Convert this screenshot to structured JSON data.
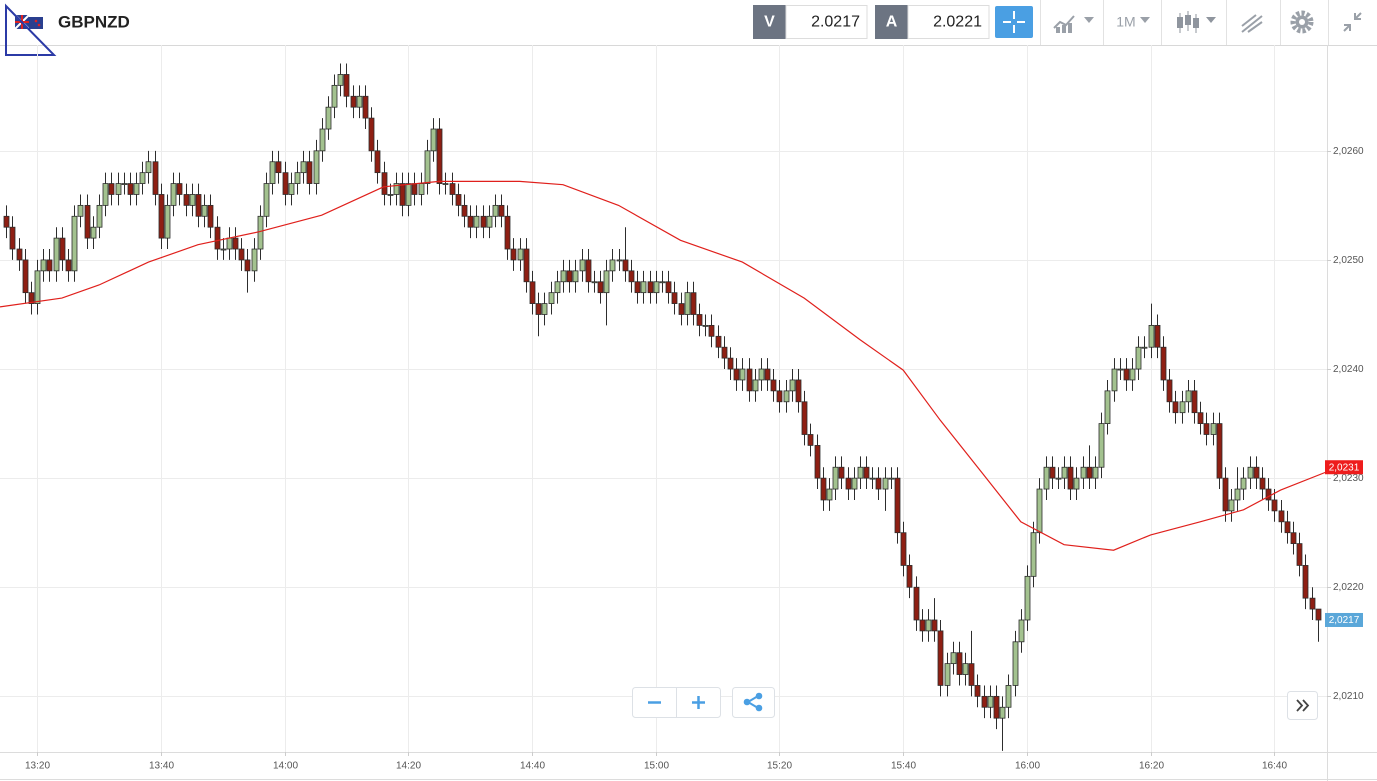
{
  "header": {
    "symbol": "GBPNZD",
    "sell_label": "V",
    "sell_price": "2.0217",
    "buy_label": "A",
    "buy_price": "2.0221",
    "timeframe": "1M"
  },
  "chart_data": {
    "type": "candlestick",
    "x": [
      795,
      796,
      797,
      798,
      799,
      800,
      801,
      802,
      803,
      804,
      805,
      806,
      807,
      808,
      809,
      810,
      811,
      812,
      813,
      814,
      815,
      816,
      817,
      818,
      819,
      820,
      821,
      822,
      823,
      824,
      825,
      826,
      827,
      828,
      829,
      830,
      831,
      832,
      833,
      834,
      835,
      836,
      837,
      838,
      839,
      840,
      841,
      842,
      843,
      844,
      845,
      846,
      847,
      848,
      849,
      850,
      851,
      852,
      853,
      854,
      855,
      856,
      857,
      858,
      859,
      860,
      861,
      862,
      863,
      864,
      865,
      866,
      867,
      868,
      869,
      870,
      871,
      872,
      873,
      874,
      875,
      876,
      877,
      878,
      879,
      880,
      881,
      882,
      883,
      884,
      885,
      886,
      887,
      888,
      889,
      890,
      891,
      892,
      893,
      894,
      895,
      896,
      897,
      898,
      899,
      900,
      901,
      902,
      903,
      904,
      905,
      906,
      907,
      908,
      909,
      910,
      911,
      912,
      913,
      914,
      915,
      916,
      917,
      918,
      919,
      920,
      921,
      922,
      923,
      924,
      925,
      926,
      927,
      928,
      929,
      930,
      931,
      932,
      933,
      934,
      935,
      936,
      937,
      938,
      939,
      940,
      941,
      942,
      943,
      944,
      945,
      946,
      947,
      948,
      949,
      950,
      951,
      952,
      953,
      954,
      955,
      956,
      957,
      958,
      959,
      960,
      961,
      962,
      963,
      964,
      965,
      966,
      967,
      968,
      969,
      970,
      971,
      972,
      973,
      974,
      975,
      976,
      977,
      978,
      979,
      980,
      981,
      982,
      983,
      984,
      985,
      986,
      987,
      988,
      989,
      990,
      991,
      992,
      993,
      994,
      995,
      996,
      997,
      998,
      999,
      1000,
      1001,
      1002,
      1003,
      1004,
      1005,
      1006,
      1007
    ],
    "open": [
      2.0254,
      2.0253,
      2.0251,
      2.025,
      2.0247,
      2.0246,
      2.0249,
      2.025,
      2.0249,
      2.0252,
      2.025,
      2.0249,
      2.0254,
      2.0255,
      2.0252,
      2.0253,
      2.0255,
      2.0257,
      2.0256,
      2.0257,
      2.0257,
      2.0256,
      2.0257,
      2.0258,
      2.0259,
      2.0256,
      2.0252,
      2.0255,
      2.0257,
      2.0256,
      2.0255,
      2.0256,
      2.0254,
      2.0255,
      2.0253,
      2.0251,
      2.0251,
      2.0252,
      2.0251,
      2.025,
      2.0249,
      2.0251,
      2.0254,
      2.0257,
      2.0259,
      2.0258,
      2.0256,
      2.0257,
      2.0258,
      2.0259,
      2.0257,
      2.026,
      2.0262,
      2.0264,
      2.0266,
      2.0267,
      2.0265,
      2.0264,
      2.0265,
      2.0263,
      2.026,
      2.0258,
      2.0256,
      2.0256,
      2.0257,
      2.0255,
      2.0257,
      2.0256,
      2.0257,
      2.026,
      2.0262,
      2.0257,
      2.0257,
      2.0256,
      2.0255,
      2.0254,
      2.0253,
      2.0254,
      2.0253,
      2.0254,
      2.0255,
      2.0254,
      2.0251,
      2.025,
      2.0251,
      2.0248,
      2.0246,
      2.0245,
      2.0246,
      2.0247,
      2.0248,
      2.0249,
      2.0248,
      2.0249,
      2.025,
      2.0248,
      2.0248,
      2.0247,
      2.0249,
      2.025,
      2.025,
      2.0249,
      2.0248,
      2.0247,
      2.0248,
      2.0247,
      2.0248,
      2.0248,
      2.0247,
      2.0246,
      2.0245,
      2.0247,
      2.0245,
      2.0244,
      2.0244,
      2.0243,
      2.0242,
      2.0241,
      2.024,
      2.0239,
      2.024,
      2.0238,
      2.0239,
      2.024,
      2.0239,
      2.0238,
      2.0237,
      2.0238,
      2.0239,
      2.0237,
      2.0234,
      2.0233,
      2.023,
      2.0228,
      2.0229,
      2.0231,
      2.023,
      2.0229,
      2.023,
      2.0231,
      2.023,
      2.023,
      2.0229,
      2.023,
      2.023,
      2.0225,
      2.0222,
      2.022,
      2.0217,
      2.0216,
      2.0217,
      2.0216,
      2.0211,
      2.0213,
      2.0214,
      2.0212,
      2.0213,
      2.0211,
      2.021,
      2.0209,
      2.021,
      2.0208,
      2.0209,
      2.0211,
      2.0215,
      2.0217,
      2.0221,
      2.0225,
      2.0229,
      2.0231,
      2.023,
      2.023,
      2.0231,
      2.0229,
      2.023,
      2.0231,
      2.023,
      2.0231,
      2.0235,
      2.0238,
      2.024,
      2.024,
      2.0239,
      2.024,
      2.0242,
      2.0242,
      2.0244,
      2.0242,
      2.0239,
      2.0237,
      2.0236,
      2.0237,
      2.0238,
      2.0236,
      2.0235,
      2.0234,
      2.0235,
      2.023,
      2.0227,
      2.0228,
      2.0229,
      2.023,
      2.0231,
      2.023,
      2.0229,
      2.0228,
      2.0227,
      2.0226,
      2.0225,
      2.0224,
      2.0222,
      2.0219,
      2.0218
    ],
    "high": [
      2.0255,
      2.0254,
      2.0252,
      2.0251,
      2.0248,
      2.025,
      2.0251,
      2.0251,
      2.0253,
      2.0253,
      2.0251,
      2.0255,
      2.0256,
      2.0256,
      2.0254,
      2.0256,
      2.0258,
      2.0258,
      2.0258,
      2.0258,
      2.0258,
      2.0258,
      2.0259,
      2.026,
      2.026,
      2.0257,
      2.0256,
      2.0258,
      2.0258,
      2.0257,
      2.0257,
      2.0257,
      2.0256,
      2.0256,
      2.0254,
      2.0252,
      2.0253,
      2.0253,
      2.0252,
      2.0251,
      2.0252,
      2.0255,
      2.0258,
      2.026,
      2.026,
      2.0259,
      2.0258,
      2.0259,
      2.026,
      2.026,
      2.0261,
      2.0263,
      2.0265,
      2.0267,
      2.0268,
      2.0268,
      2.0266,
      2.0266,
      2.0266,
      2.0264,
      2.0261,
      2.0259,
      2.0257,
      2.0258,
      2.0258,
      2.0258,
      2.0258,
      2.0258,
      2.0261,
      2.0263,
      2.0263,
      2.0258,
      2.0258,
      2.0257,
      2.0256,
      2.0255,
      2.0255,
      2.0255,
      2.0255,
      2.0256,
      2.0256,
      2.0255,
      2.0252,
      2.0252,
      2.0252,
      2.0249,
      2.0247,
      2.0247,
      2.0248,
      2.0249,
      2.025,
      2.025,
      2.025,
      2.0251,
      2.0251,
      2.0249,
      2.0249,
      2.025,
      2.0251,
      2.0251,
      2.0253,
      2.025,
      2.0249,
      2.0249,
      2.0249,
      2.0249,
      2.0249,
      2.0249,
      2.0248,
      2.0247,
      2.0248,
      2.0248,
      2.0246,
      2.0245,
      2.0245,
      2.0244,
      2.0243,
      2.0242,
      2.0241,
      2.0241,
      2.0241,
      2.024,
      2.0241,
      2.0241,
      2.024,
      2.0239,
      2.0239,
      2.024,
      2.024,
      2.0238,
      2.0235,
      2.0234,
      2.0231,
      2.023,
      2.0232,
      2.0232,
      2.0231,
      2.0231,
      2.0232,
      2.0232,
      2.0231,
      2.0231,
      2.0231,
      2.0231,
      2.0231,
      2.0226,
      2.0223,
      2.0221,
      2.0218,
      2.0218,
      2.0219,
      2.0217,
      2.0214,
      2.0215,
      2.0215,
      2.0214,
      2.0216,
      2.0212,
      2.0211,
      2.0211,
      2.0211,
      2.021,
      2.0212,
      2.0216,
      2.0218,
      2.0222,
      2.0226,
      2.023,
      2.0232,
      2.0232,
      2.0231,
      2.0232,
      2.0232,
      2.0231,
      2.0232,
      2.0233,
      2.0232,
      2.0236,
      2.0239,
      2.0241,
      2.0241,
      2.0241,
      2.0241,
      2.0243,
      2.0243,
      2.0246,
      2.0245,
      2.0243,
      2.024,
      2.0238,
      2.0238,
      2.0239,
      2.0239,
      2.0237,
      2.0236,
      2.0236,
      2.0236,
      2.0231,
      2.0229,
      2.0231,
      2.0231,
      2.0232,
      2.0232,
      2.0231,
      2.023,
      2.0229,
      2.0228,
      2.0227,
      2.0226,
      2.0225,
      2.0223,
      2.022,
      2.0218
    ],
    "low": [
      2.0252,
      2.025,
      2.0249,
      2.0246,
      2.0245,
      2.0245,
      2.0248,
      2.0248,
      2.0248,
      2.0249,
      2.0248,
      2.0248,
      2.0253,
      2.0251,
      2.0251,
      2.0252,
      2.0254,
      2.0255,
      2.0255,
      2.0256,
      2.0255,
      2.0255,
      2.0256,
      2.0257,
      2.0255,
      2.0251,
      2.0251,
      2.0254,
      2.0255,
      2.0254,
      2.0254,
      2.0253,
      2.0253,
      2.0252,
      2.025,
      2.025,
      2.025,
      2.025,
      2.0249,
      2.0247,
      2.0248,
      2.025,
      2.0253,
      2.0256,
      2.0257,
      2.0255,
      2.0255,
      2.0256,
      2.0257,
      2.0256,
      2.0256,
      2.0259,
      2.0261,
      2.0263,
      2.0265,
      2.0264,
      2.0263,
      2.0263,
      2.0262,
      2.0259,
      2.0257,
      2.0255,
      2.0255,
      2.0255,
      2.0254,
      2.0254,
      2.0255,
      2.0255,
      2.0256,
      2.0259,
      2.0256,
      2.0256,
      2.0255,
      2.0254,
      2.0253,
      2.0252,
      2.0252,
      2.0252,
      2.0252,
      2.0253,
      2.0253,
      2.025,
      2.0249,
      2.0249,
      2.0247,
      2.0245,
      2.0243,
      2.0244,
      2.0245,
      2.0246,
      2.0247,
      2.0247,
      2.0247,
      2.0248,
      2.0247,
      2.0247,
      2.0246,
      2.0244,
      2.0248,
      2.0249,
      2.0248,
      2.0247,
      2.0246,
      2.0246,
      2.0246,
      2.0246,
      2.0247,
      2.0246,
      2.0245,
      2.0244,
      2.0244,
      2.0244,
      2.0243,
      2.0243,
      2.0242,
      2.0241,
      2.024,
      2.0239,
      2.0238,
      2.0238,
      2.0237,
      2.0237,
      2.0238,
      2.0238,
      2.0237,
      2.0236,
      2.0236,
      2.0237,
      2.0236,
      2.0233,
      2.0232,
      2.0229,
      2.0227,
      2.0227,
      2.0228,
      2.0229,
      2.0228,
      2.0228,
      2.0229,
      2.0229,
      2.0229,
      2.0228,
      2.0227,
      2.0229,
      2.0224,
      2.0221,
      2.0219,
      2.0216,
      2.0215,
      2.0215,
      2.0215,
      2.021,
      2.021,
      2.0212,
      2.0211,
      2.0211,
      2.021,
      2.0209,
      2.0208,
      2.0208,
      2.0207,
      2.0205,
      2.0208,
      2.021,
      2.0214,
      2.0216,
      2.022,
      2.0224,
      2.0228,
      2.0229,
      2.0229,
      2.0229,
      2.0228,
      2.0228,
      2.0229,
      2.0229,
      2.0229,
      2.023,
      2.0234,
      2.0237,
      2.0239,
      2.0238,
      2.0238,
      2.0239,
      2.0241,
      2.0241,
      2.0241,
      2.0238,
      2.0236,
      2.0235,
      2.0235,
      2.0236,
      2.0235,
      2.0234,
      2.0233,
      2.0233,
      2.0229,
      2.0226,
      2.0226,
      2.0227,
      2.0228,
      2.0229,
      2.0229,
      2.0228,
      2.0227,
      2.0226,
      2.0225,
      2.0224,
      2.0223,
      2.0221,
      2.0218,
      2.0217,
      2.0215
    ],
    "close": [
      2.0253,
      2.0251,
      2.025,
      2.0247,
      2.0246,
      2.0249,
      2.025,
      2.0249,
      2.0252,
      2.025,
      2.0249,
      2.0254,
      2.0255,
      2.0252,
      2.0253,
      2.0255,
      2.0257,
      2.0256,
      2.0257,
      2.0257,
      2.0256,
      2.0257,
      2.0258,
      2.0259,
      2.0256,
      2.0252,
      2.0255,
      2.0257,
      2.0256,
      2.0255,
      2.0256,
      2.0254,
      2.0255,
      2.0253,
      2.0251,
      2.0251,
      2.0252,
      2.0251,
      2.025,
      2.0249,
      2.0251,
      2.0254,
      2.0257,
      2.0259,
      2.0258,
      2.0256,
      2.0257,
      2.0258,
      2.0259,
      2.0257,
      2.026,
      2.0262,
      2.0264,
      2.0266,
      2.0267,
      2.0265,
      2.0264,
      2.0265,
      2.0263,
      2.026,
      2.0258,
      2.0256,
      2.0256,
      2.0257,
      2.0255,
      2.0257,
      2.0256,
      2.0257,
      2.026,
      2.0262,
      2.0257,
      2.0257,
      2.0256,
      2.0255,
      2.0254,
      2.0253,
      2.0254,
      2.0253,
      2.0254,
      2.0255,
      2.0254,
      2.0251,
      2.025,
      2.0251,
      2.0248,
      2.0246,
      2.0245,
      2.0246,
      2.0247,
      2.0248,
      2.0249,
      2.0248,
      2.0249,
      2.025,
      2.0248,
      2.0248,
      2.0247,
      2.0249,
      2.025,
      2.025,
      2.0249,
      2.0248,
      2.0247,
      2.0248,
      2.0247,
      2.0248,
      2.0248,
      2.0247,
      2.0246,
      2.0245,
      2.0247,
      2.0245,
      2.0244,
      2.0244,
      2.0243,
      2.0242,
      2.0241,
      2.024,
      2.0239,
      2.024,
      2.0238,
      2.0239,
      2.024,
      2.0239,
      2.0238,
      2.0237,
      2.0238,
      2.0239,
      2.0237,
      2.0234,
      2.0233,
      2.023,
      2.0228,
      2.0229,
      2.0231,
      2.023,
      2.0229,
      2.023,
      2.0231,
      2.023,
      2.023,
      2.0229,
      2.023,
      2.023,
      2.0225,
      2.0222,
      2.022,
      2.0217,
      2.0216,
      2.0217,
      2.0216,
      2.0211,
      2.0213,
      2.0214,
      2.0212,
      2.0213,
      2.0211,
      2.021,
      2.0209,
      2.021,
      2.0208,
      2.0209,
      2.0211,
      2.0215,
      2.0217,
      2.0221,
      2.0225,
      2.0229,
      2.0231,
      2.023,
      2.023,
      2.0231,
      2.0229,
      2.023,
      2.0231,
      2.023,
      2.0231,
      2.0235,
      2.0238,
      2.024,
      2.024,
      2.0239,
      2.024,
      2.0242,
      2.0242,
      2.0244,
      2.0242,
      2.0239,
      2.0237,
      2.0236,
      2.0237,
      2.0238,
      2.0236,
      2.0235,
      2.0234,
      2.0235,
      2.023,
      2.0227,
      2.0228,
      2.0229,
      2.023,
      2.0231,
      2.023,
      2.0229,
      2.0228,
      2.0227,
      2.0226,
      2.0225,
      2.0224,
      2.0222,
      2.0219,
      2.0218,
      2.0217
    ],
    "up_color": "#a3c28f",
    "down_color": "#8e1f13",
    "moving_average": {
      "color": "#e0201c",
      "x": [
        794,
        804,
        810,
        818,
        826,
        836,
        846,
        856,
        865,
        878,
        885,
        894,
        904,
        914,
        924,
        933,
        940,
        946,
        953,
        959,
        966,
        974,
        980,
        988,
        995,
        1001,
        1009
      ],
      "values": [
        2.02457,
        2.02465,
        2.02477,
        2.02498,
        2.02514,
        2.02526,
        2.02541,
        2.02567,
        2.02572,
        2.02572,
        2.02569,
        2.0255,
        2.02518,
        2.02498,
        2.02465,
        2.02427,
        2.02399,
        2.02353,
        2.02303,
        2.0226,
        2.02239,
        2.02234,
        2.02248,
        2.0226,
        2.02271,
        2.02289,
        2.02307
      ]
    },
    "xlim": [
      794,
      1008.5
    ],
    "xticks": [
      {
        "value": 800,
        "label": "13:20"
      },
      {
        "value": 820,
        "label": "13:40"
      },
      {
        "value": 840,
        "label": "14:00"
      },
      {
        "value": 860,
        "label": "14:20"
      },
      {
        "value": 880,
        "label": "14:40"
      },
      {
        "value": 900,
        "label": "15:00"
      },
      {
        "value": 920,
        "label": "15:20"
      },
      {
        "value": 940,
        "label": "15:40"
      },
      {
        "value": 960,
        "label": "16:00"
      },
      {
        "value": 980,
        "label": "16:20"
      },
      {
        "value": 1000,
        "label": "16:40"
      }
    ],
    "ylim": [
      2.02049,
      2.02697
    ],
    "yticks": [
      {
        "value": 2.021,
        "label": "2,0210"
      },
      {
        "value": 2.022,
        "label": "2,0220"
      },
      {
        "value": 2.023,
        "label": "2,0230"
      },
      {
        "value": 2.024,
        "label": "2,0240"
      },
      {
        "value": 2.025,
        "label": "2,0250"
      },
      {
        "value": 2.026,
        "label": "2,0260"
      }
    ],
    "grid": true,
    "price_tags": [
      {
        "value": 2.0231,
        "label": "2,0231",
        "color": "#ee1c1c"
      },
      {
        "value": 2.0217,
        "label": "2,0217",
        "color": "#5aa7d9"
      }
    ]
  }
}
